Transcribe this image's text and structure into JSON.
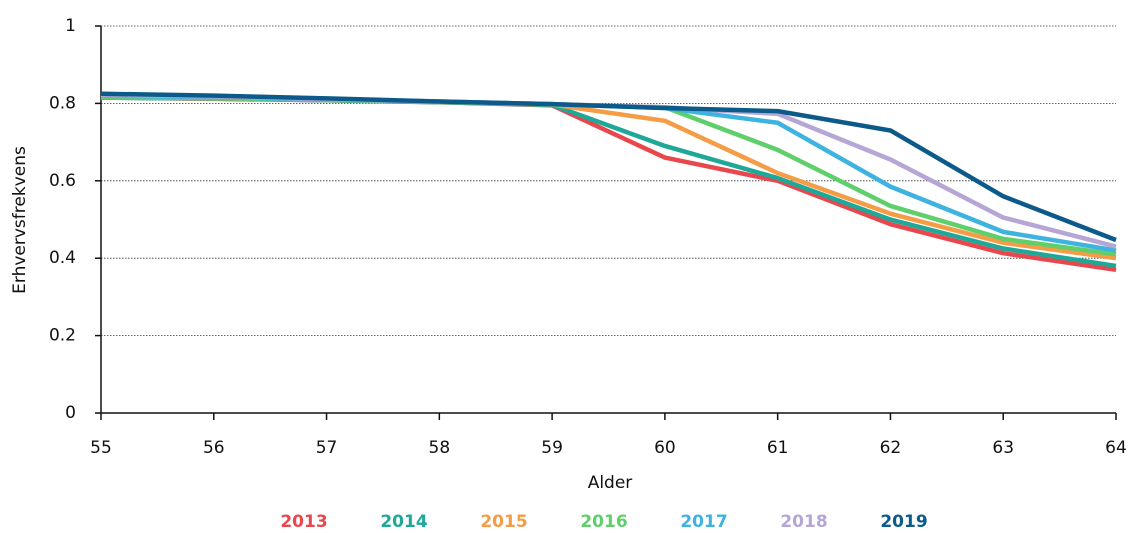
{
  "chart_data": {
    "type": "line",
    "x_label": "Alder",
    "y_label": "Erhvervsfrekvens",
    "x": [
      55,
      56,
      57,
      58,
      59,
      60,
      61,
      62,
      63,
      64
    ],
    "xlim": [
      55,
      64
    ],
    "xticks": [
      55,
      56,
      57,
      58,
      59,
      60,
      61,
      62,
      63,
      64
    ],
    "ylim": [
      0,
      1
    ],
    "yticks": [
      0,
      0.2,
      0.4,
      0.6,
      0.8,
      1
    ],
    "grid": true,
    "series": [
      {
        "name": "2013",
        "color": "#e8474e",
        "values": [
          0.815,
          0.812,
          0.808,
          0.803,
          0.795,
          0.66,
          0.6,
          0.488,
          0.413,
          0.37
        ]
      },
      {
        "name": "2014",
        "color": "#1fa898",
        "values": [
          0.815,
          0.812,
          0.808,
          0.803,
          0.796,
          0.69,
          0.607,
          0.5,
          0.425,
          0.38
        ]
      },
      {
        "name": "2015",
        "color": "#f59c47",
        "values": [
          0.816,
          0.813,
          0.809,
          0.804,
          0.797,
          0.755,
          0.62,
          0.515,
          0.44,
          0.4
        ]
      },
      {
        "name": "2016",
        "color": "#5fcf6b",
        "values": [
          0.817,
          0.814,
          0.809,
          0.804,
          0.797,
          0.79,
          0.68,
          0.535,
          0.45,
          0.41
        ]
      },
      {
        "name": "2017",
        "color": "#3fb3e0",
        "values": [
          0.82,
          0.816,
          0.81,
          0.805,
          0.798,
          0.788,
          0.75,
          0.585,
          0.468,
          0.42
        ]
      },
      {
        "name": "2018",
        "color": "#b5a6d6",
        "values": [
          0.822,
          0.818,
          0.811,
          0.805,
          0.798,
          0.79,
          0.773,
          0.655,
          0.505,
          0.43
        ]
      },
      {
        "name": "2019",
        "color": "#0c5a8a",
        "values": [
          0.825,
          0.82,
          0.813,
          0.805,
          0.798,
          0.788,
          0.78,
          0.73,
          0.56,
          0.447
        ]
      }
    ]
  }
}
